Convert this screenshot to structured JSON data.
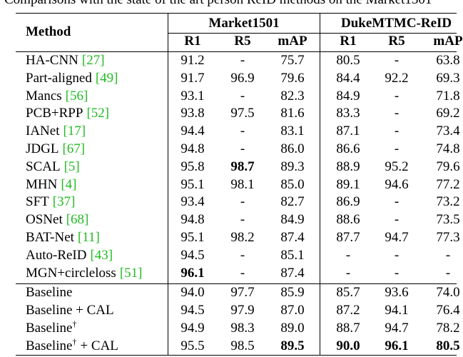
{
  "caption": "Comparisons with the state of the art person ReID methods on the Market1501",
  "header": {
    "method": "Method",
    "groups": [
      "Market1501",
      "DukeMTMC-ReID"
    ],
    "metrics": [
      "R1",
      "R5",
      "mAP",
      "R1",
      "R5",
      "mAP"
    ]
  },
  "rows": [
    {
      "method": "HA-CNN",
      "ref": "[27]",
      "cells": [
        "91.2",
        "-",
        "75.7",
        "80.5",
        "-",
        "63.8"
      ]
    },
    {
      "method": "Part-aligned",
      "ref": "[49]",
      "cells": [
        "91.7",
        "96.9",
        "79.6",
        "84.4",
        "92.2",
        "69.3"
      ]
    },
    {
      "method": "Mancs",
      "ref": "[56]",
      "cells": [
        "93.1",
        "-",
        "82.3",
        "84.9",
        "-",
        "71.8"
      ]
    },
    {
      "method": "PCB+RPP",
      "ref": "[52]",
      "cells": [
        "93.8",
        "97.5",
        "81.6",
        "83.3",
        "-",
        "69.2"
      ]
    },
    {
      "method": "IANet",
      "ref": "[17]",
      "cells": [
        "94.4",
        "-",
        "83.1",
        "87.1",
        "-",
        "73.4"
      ]
    },
    {
      "method": "JDGL",
      "ref": "[67]",
      "cells": [
        "94.8",
        "-",
        "86.0",
        "86.6",
        "-",
        "74.8"
      ]
    },
    {
      "method": "SCAL",
      "ref": "[5]",
      "cells": [
        "95.8",
        "98.7",
        "89.3",
        "88.9",
        "95.2",
        "79.6"
      ],
      "bold": [
        1
      ]
    },
    {
      "method": "MHN",
      "ref": "[4]",
      "cells": [
        "95.1",
        "98.1",
        "85.0",
        "89.1",
        "94.6",
        "77.2"
      ]
    },
    {
      "method": "SFT",
      "ref": "[37]",
      "cells": [
        "93.4",
        "-",
        "82.7",
        "86.9",
        "-",
        "73.2"
      ]
    },
    {
      "method": "OSNet",
      "ref": "[68]",
      "cells": [
        "94.8",
        "-",
        "84.9",
        "88.6",
        "-",
        "73.5"
      ]
    },
    {
      "method": "BAT-Net",
      "ref": "[11]",
      "cells": [
        "95.1",
        "98.2",
        "87.4",
        "87.7",
        "94.7",
        "77.3"
      ]
    },
    {
      "method": "Auto-ReID",
      "ref": "[43]",
      "cells": [
        "94.5",
        "-",
        "85.1",
        "-",
        "-",
        "-"
      ]
    },
    {
      "method": "MGN+circleloss",
      "ref": "[51]",
      "cells": [
        "96.1",
        "-",
        "87.4",
        "-",
        "-",
        "-"
      ],
      "bold": [
        0
      ]
    },
    {
      "method": "Baseline",
      "cells": [
        "94.0",
        "97.7",
        "85.9",
        "85.7",
        "93.6",
        "74.0"
      ]
    },
    {
      "method": "Baseline + CAL",
      "cells": [
        "94.5",
        "97.9",
        "87.0",
        "87.2",
        "94.1",
        "76.4"
      ]
    },
    {
      "method": "Baseline",
      "sup": "†",
      "cells": [
        "94.9",
        "98.3",
        "89.0",
        "88.7",
        "94.7",
        "78.2"
      ]
    },
    {
      "method": "Baseline",
      "sup": "†",
      "suffix": "+ CAL",
      "cells": [
        "95.5",
        "98.5",
        "89.5",
        "90.0",
        "96.1",
        "80.5"
      ],
      "bold": [
        2,
        3,
        4,
        5
      ]
    }
  ]
}
